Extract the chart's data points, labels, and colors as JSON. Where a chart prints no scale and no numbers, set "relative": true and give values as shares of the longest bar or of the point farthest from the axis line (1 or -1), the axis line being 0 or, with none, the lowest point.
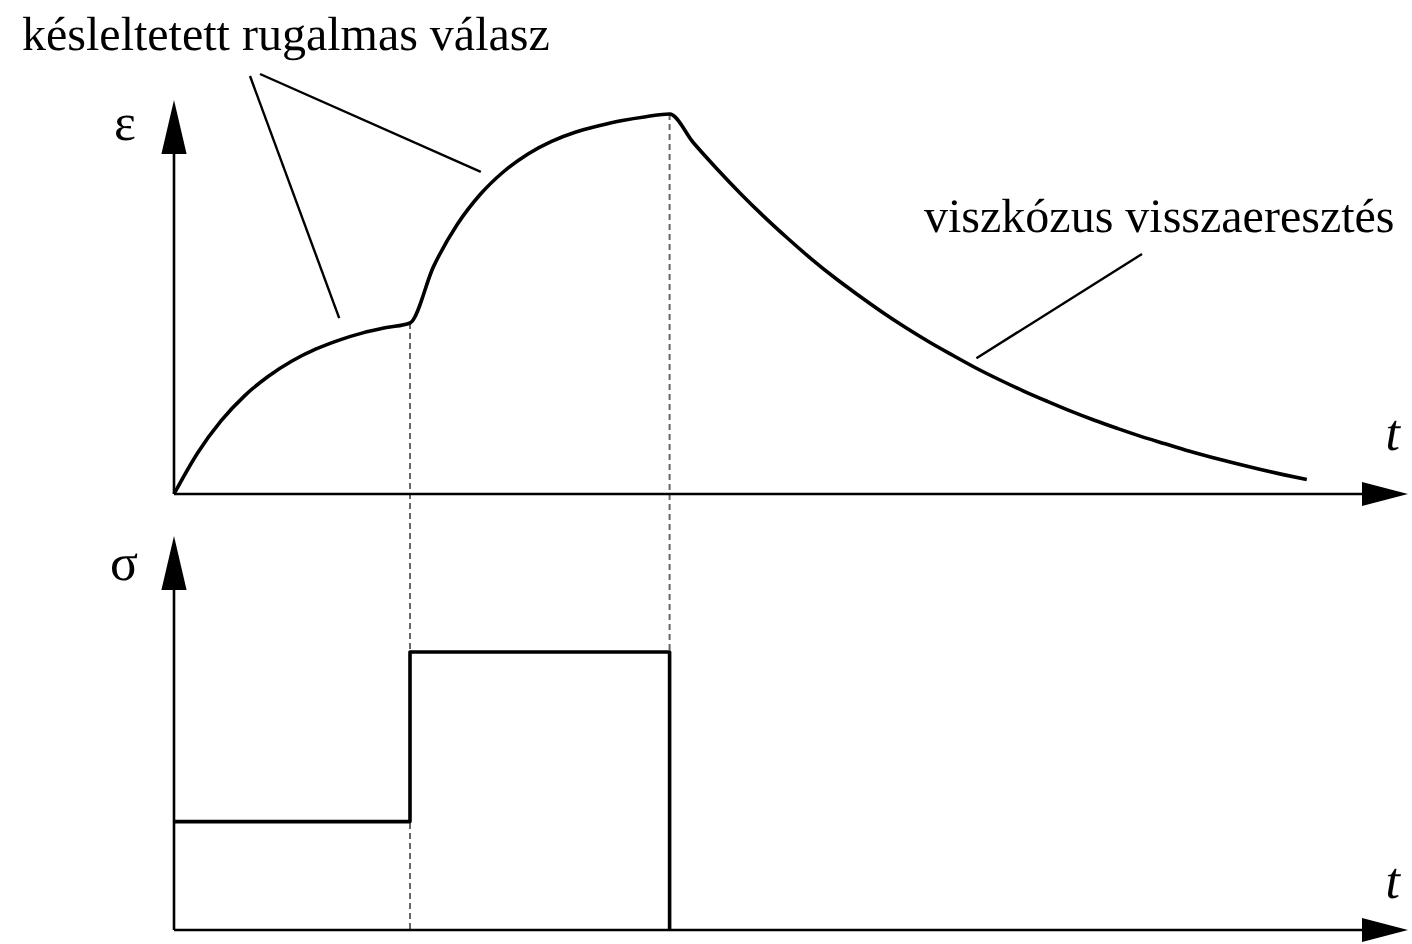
{
  "chart_data": [
    {
      "type": "line",
      "relative": true,
      "ylabel": "ε",
      "xlabel": "t",
      "color": "#000000",
      "categories": [
        null,
        null,
        null,
        null,
        null,
        null,
        null,
        null,
        null,
        null,
        null,
        null,
        null,
        null,
        null,
        null,
        null,
        null,
        null,
        null,
        null,
        null,
        null,
        null,
        null,
        null,
        null,
        null,
        null,
        null,
        null,
        null,
        null,
        null,
        null,
        null,
        null,
        null,
        null,
        null,
        null,
        null,
        null,
        null,
        null,
        null,
        null,
        null,
        null,
        null,
        null,
        null,
        null
      ],
      "values": [
        0,
        0.108,
        0.193,
        0.259,
        0.31,
        0.35,
        0.381,
        0.405,
        0.424,
        0.438,
        0.45,
        0.599,
        0.709,
        0.79,
        0.85,
        0.895,
        0.928,
        0.952,
        0.969,
        0.983,
        0.993,
        1,
        0.925,
        0.856,
        0.791,
        0.73,
        0.673,
        0.619,
        0.569,
        0.523,
        0.479,
        0.438,
        0.4,
        0.365,
        0.331,
        0.3,
        0.271,
        0.244,
        0.218,
        0.194,
        0.172,
        0.151,
        0.132,
        0.113,
        0.096,
        0.08,
        0.065,
        0.051,
        0.038,
        null,
        null,
        null,
        null
      ],
      "annotations": [
        "késleltetett rugalmas válasz",
        "viszkózus visszaeresztés"
      ]
    },
    {
      "type": "step",
      "relative": true,
      "ylabel": "σ",
      "xlabel": "t",
      "color": "#000000",
      "categories": [
        null,
        null,
        null,
        null,
        null,
        null,
        null,
        null,
        null,
        null,
        null,
        null,
        null,
        null,
        null,
        null,
        null,
        null,
        null,
        null,
        null,
        null,
        null,
        null,
        null,
        null,
        null,
        null,
        null,
        null,
        null,
        null,
        null,
        null,
        null,
        null,
        null,
        null,
        null,
        null,
        null,
        null,
        null,
        null,
        null,
        null,
        null,
        null,
        null,
        null,
        null,
        null,
        null
      ],
      "values": [
        0.39,
        0.39,
        0.39,
        0.39,
        0.39,
        0.39,
        0.39,
        0.39,
        0.39,
        0.39,
        1,
        1,
        1,
        1,
        1,
        1,
        1,
        1,
        1,
        1,
        1,
        0,
        null,
        null,
        null,
        null,
        null,
        null,
        null,
        null,
        null,
        null,
        null,
        null,
        null,
        null,
        null,
        null,
        null,
        null,
        null,
        null,
        null,
        null,
        null,
        null,
        null,
        null,
        null,
        null,
        null,
        null,
        null
      ]
    }
  ]
}
